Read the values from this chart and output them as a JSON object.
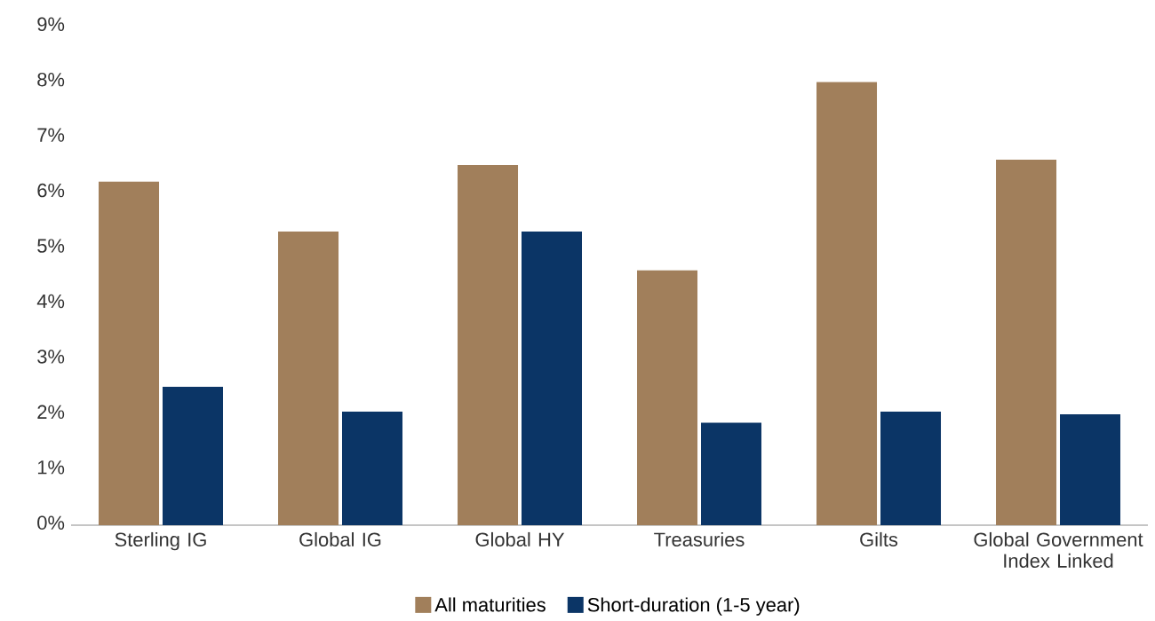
{
  "chart_data": {
    "type": "bar",
    "categories": [
      "Sterling IG",
      "Global IG",
      "Global HY",
      "Treasuries",
      "Gilts",
      "Global Government Index Linked"
    ],
    "series": [
      {
        "name": "All maturities",
        "color": "#a17f5b",
        "values": [
          6.2,
          5.3,
          6.5,
          4.6,
          8.0,
          6.6
        ]
      },
      {
        "name": "Short-duration (1-5 year)",
        "color": "#0b3566",
        "values": [
          2.5,
          2.05,
          5.3,
          1.85,
          2.05,
          2.0
        ]
      }
    ],
    "ylim": [
      0,
      9
    ],
    "yticks": [
      {
        "value": 0,
        "label": "0%"
      },
      {
        "value": 1,
        "label": "1%"
      },
      {
        "value": 2,
        "label": "2%"
      },
      {
        "value": 3,
        "label": "3%"
      },
      {
        "value": 4,
        "label": "4%"
      },
      {
        "value": 5,
        "label": "5%"
      },
      {
        "value": 6,
        "label": "6%"
      },
      {
        "value": 7,
        "label": "7%"
      },
      {
        "value": 8,
        "label": "8%"
      },
      {
        "value": 9,
        "label": "9%"
      }
    ],
    "grid": false,
    "legend": "bottom"
  }
}
